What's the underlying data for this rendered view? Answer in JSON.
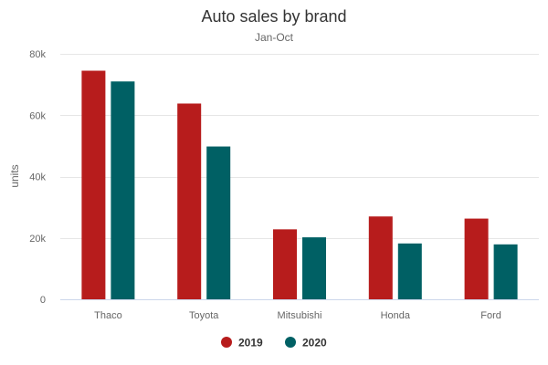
{
  "colors": {
    "series_2019": "#b71c1c",
    "series_2020": "#006064"
  },
  "chart_data": {
    "type": "bar",
    "title": "Auto sales by brand",
    "subtitle": "Jan-Oct",
    "xlabel": "",
    "ylabel": "units",
    "categories": [
      "Thaco",
      "Toyota",
      "Mitsubishi",
      "Honda",
      "Ford"
    ],
    "series": [
      {
        "name": "2019",
        "color": "#b71c1c",
        "values": [
          74500,
          63800,
          22800,
          27000,
          26300
        ]
      },
      {
        "name": "2020",
        "color": "#006064",
        "values": [
          71000,
          49800,
          20200,
          18200,
          17900
        ]
      }
    ],
    "ylim": [
      0,
      80000
    ],
    "yticks": [
      0,
      20000,
      40000,
      60000,
      80000
    ],
    "ytick_labels": [
      "0",
      "20k",
      "40k",
      "60k",
      "80k"
    ],
    "grid": true,
    "legend": "bottom-center"
  }
}
